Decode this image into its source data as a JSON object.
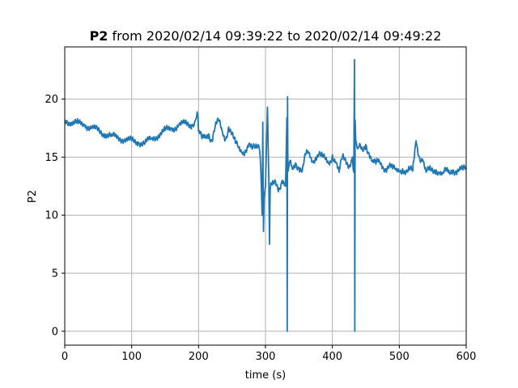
{
  "chart_data": {
    "type": "line",
    "title_bold": "P2",
    "title_rest": " from 2020/02/14 09:39:22 to 2020/02/14 09:49:22",
    "xlabel": "time (s)",
    "ylabel": "P2",
    "xlim": [
      0,
      600
    ],
    "ylim": [
      -1.2,
      24.5
    ],
    "xticks": [
      0,
      100,
      200,
      300,
      400,
      500,
      600
    ],
    "yticks": [
      0,
      5,
      10,
      15,
      20
    ],
    "grid": true,
    "line_color": "#1f77b4",
    "series": [
      {
        "x": [
          0,
          10,
          20,
          30,
          40,
          50,
          60,
          70,
          80,
          90,
          100,
          110,
          120,
          130,
          140,
          150,
          160,
          170,
          180,
          190,
          196,
          198,
          200,
          205,
          210,
          215,
          220,
          225,
          230,
          235,
          240,
          245,
          250,
          255,
          260,
          265,
          270,
          275,
          280,
          285,
          290,
          292,
          294,
          295,
          296,
          297,
          298,
          300,
          303,
          305,
          306,
          307,
          308,
          310,
          315,
          320,
          325,
          330,
          332,
          332.5,
          333,
          333.5,
          334,
          336,
          340,
          345,
          350,
          355,
          360,
          365,
          370,
          375,
          380,
          385,
          390,
          395,
          400,
          405,
          410,
          415,
          420,
          425,
          430,
          432,
          433,
          433.5,
          434,
          435,
          437,
          440,
          445,
          450,
          455,
          460,
          465,
          470,
          475,
          480,
          485,
          490,
          495,
          500,
          505,
          510,
          515,
          520,
          525,
          528,
          530,
          535,
          540,
          545,
          550,
          555,
          560,
          565,
          570,
          575,
          580,
          585,
          590,
          595,
          600
        ],
        "y": [
          18.2,
          18.0,
          17.9,
          17.8,
          17.5,
          17.3,
          17.0,
          16.8,
          16.7,
          16.5,
          16.4,
          16.3,
          16.2,
          16.6,
          16.9,
          17.3,
          17.5,
          17.7,
          17.9,
          17.8,
          18.3,
          18.9,
          17.2,
          16.6,
          16.8,
          17.0,
          16.4,
          17.7,
          18.1,
          17.3,
          16.5,
          17.6,
          17.0,
          16.2,
          15.8,
          15.4,
          15.6,
          16.1,
          15.7,
          15.8,
          16.0,
          15.1,
          12.2,
          10.0,
          18.0,
          8.6,
          11.5,
          12.5,
          19.3,
          13.0,
          7.5,
          12.2,
          12.8,
          12.6,
          12.9,
          12.3,
          13.0,
          12.5,
          18.4,
          0.0,
          20.2,
          14.2,
          13.8,
          14.6,
          14.0,
          14.5,
          14.1,
          13.8,
          15.2,
          15.4,
          14.6,
          15.0,
          15.3,
          15.0,
          14.8,
          14.4,
          15.2,
          14.6,
          13.7,
          15.0,
          14.7,
          14.3,
          15.0,
          13.7,
          23.4,
          0.0,
          18.2,
          16.4,
          15.8,
          15.9,
          15.6,
          16.1,
          15.3,
          14.6,
          14.4,
          14.7,
          14.2,
          14.0,
          14.3,
          14.0,
          13.9,
          13.8,
          14.0,
          13.7,
          13.9,
          13.8,
          16.4,
          15.2,
          15.0,
          14.8,
          13.7,
          13.9,
          13.8,
          13.9,
          13.7,
          13.6,
          13.8,
          13.6,
          13.9,
          13.8,
          14.0,
          13.9,
          14.0
        ]
      }
    ]
  }
}
